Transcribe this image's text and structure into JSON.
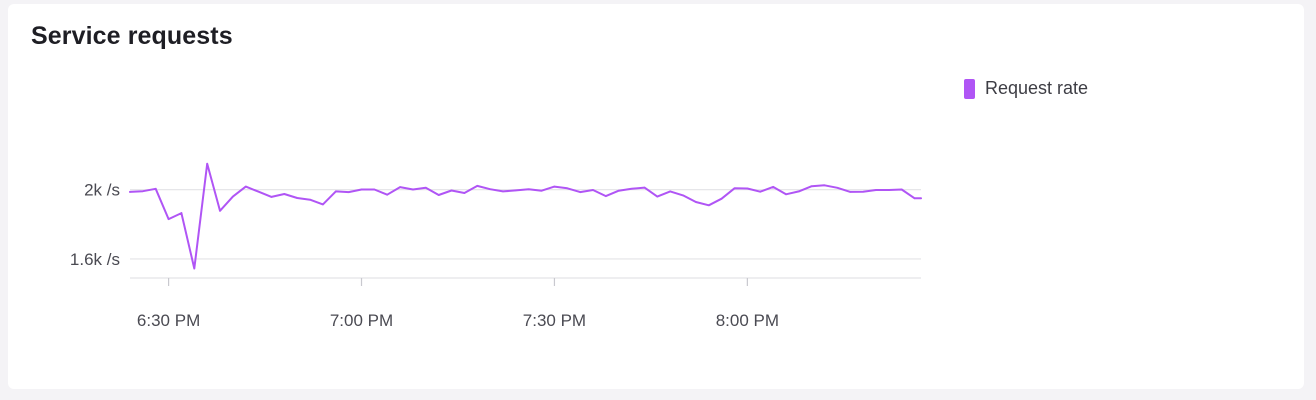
{
  "panel": {
    "title": "Service requests"
  },
  "colors": {
    "series": "#b055f5",
    "grid": "#e3e3e6",
    "axis_text": "#4a4a52"
  },
  "chart_data": {
    "type": "line",
    "title": "Service requests",
    "xlabel": "",
    "ylabel": "",
    "x_start": "6:24 PM",
    "x_end": "8:27 PM",
    "x_step_minutes": 2,
    "xticks": [
      {
        "label": "6:30 PM",
        "minute": 30
      },
      {
        "label": "7:00 PM",
        "minute": 60
      },
      {
        "label": "7:30 PM",
        "minute": 90
      },
      {
        "label": "8:00 PM",
        "minute": 120
      }
    ],
    "yticks": [
      {
        "label": "2k /s",
        "value": 2000
      },
      {
        "label": "1.6k /s",
        "value": 1600
      }
    ],
    "ylim": [
      1490,
      2460
    ],
    "xlim_minutes": [
      24,
      147
    ],
    "grid": true,
    "legend_position": "top-right",
    "series": [
      {
        "name": "Request rate",
        "x_minutes": [
          24,
          26,
          28,
          30,
          32,
          34,
          36,
          38,
          40,
          42,
          44,
          46,
          48,
          50,
          52,
          54,
          56,
          58,
          60,
          62,
          64,
          66,
          68,
          70,
          72,
          74,
          76,
          78,
          80,
          82,
          84,
          86,
          88,
          90,
          92,
          94,
          96,
          98,
          100,
          102,
          104,
          106,
          108,
          110,
          112,
          114,
          116,
          118,
          120,
          122,
          124,
          126,
          128,
          130,
          132,
          134,
          136,
          138,
          140,
          142,
          144,
          146,
          147
        ],
        "values": [
          1987,
          1991,
          2005,
          1830,
          1865,
          1545,
          2150,
          1878,
          1960,
          2018,
          1988,
          1958,
          1975,
          1952,
          1942,
          1915,
          1990,
          1986,
          2001,
          2001,
          1971,
          2015,
          2001,
          2011,
          1969,
          1995,
          1981,
          2022,
          2003,
          1990,
          1996,
          2002,
          1994,
          2018,
          2008,
          1986,
          1998,
          1963,
          1994,
          2005,
          2012,
          1960,
          1990,
          1967,
          1929,
          1910,
          1948,
          2008,
          2007,
          1988,
          2016,
          1973,
          1990,
          2020,
          2025,
          2011,
          1987,
          1988,
          1998,
          1998,
          2001,
          1950,
          1950
        ]
      }
    ]
  }
}
